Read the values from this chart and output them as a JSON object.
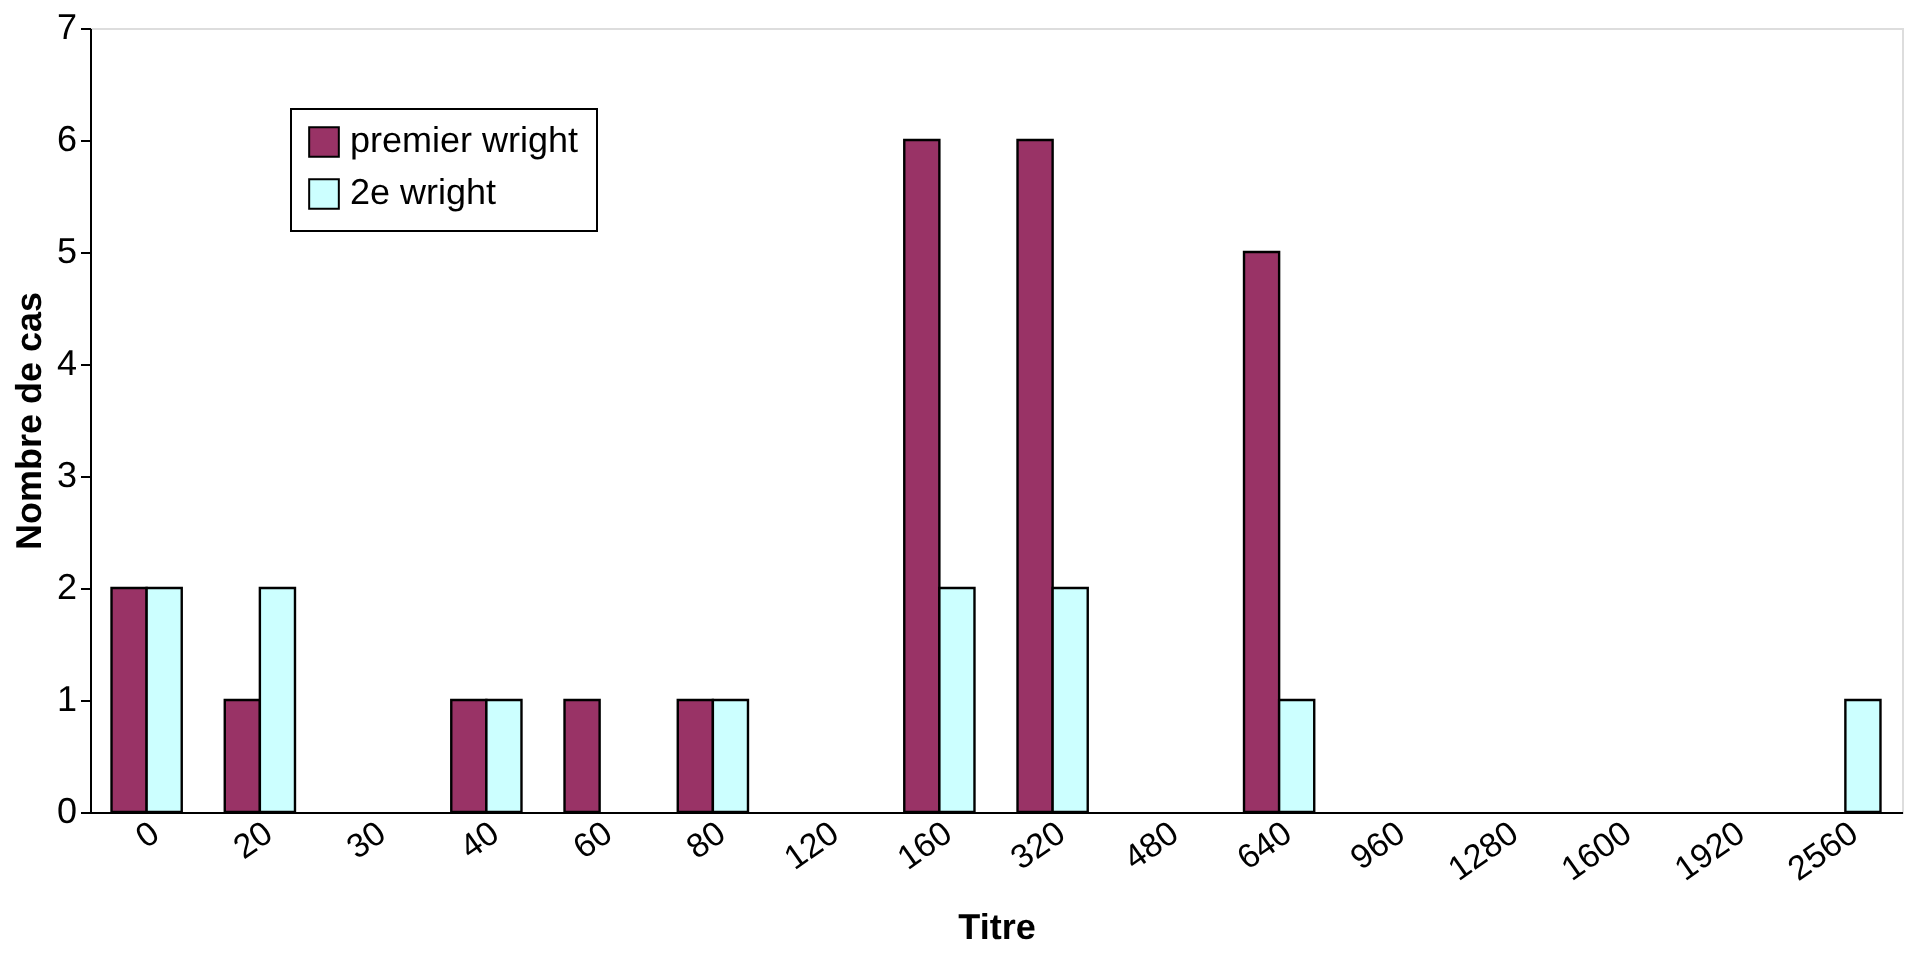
{
  "chart_data": {
    "type": "bar",
    "xlabel": "Titre",
    "ylabel": "Nombre de cas",
    "categories": [
      "0",
      "20",
      "30",
      "40",
      "60",
      "80",
      "120",
      "160",
      "320",
      "480",
      "640",
      "960",
      "1280",
      "1600",
      "1920",
      "2560"
    ],
    "series": [
      {
        "name": "premier wright",
        "color": "#993366",
        "values": [
          2,
          1,
          0,
          1,
          1,
          1,
          0,
          6,
          6,
          0,
          5,
          0,
          0,
          0,
          0,
          0
        ]
      },
      {
        "name": "2e wright",
        "color": "#ccffff",
        "values": [
          2,
          2,
          0,
          1,
          0,
          1,
          0,
          2,
          2,
          0,
          1,
          0,
          0,
          0,
          0,
          1
        ]
      }
    ],
    "ylim": [
      0,
      7
    ],
    "yticks": [
      0,
      1,
      2,
      3,
      4,
      5,
      6,
      7
    ],
    "grid": false,
    "legend": "top left"
  }
}
